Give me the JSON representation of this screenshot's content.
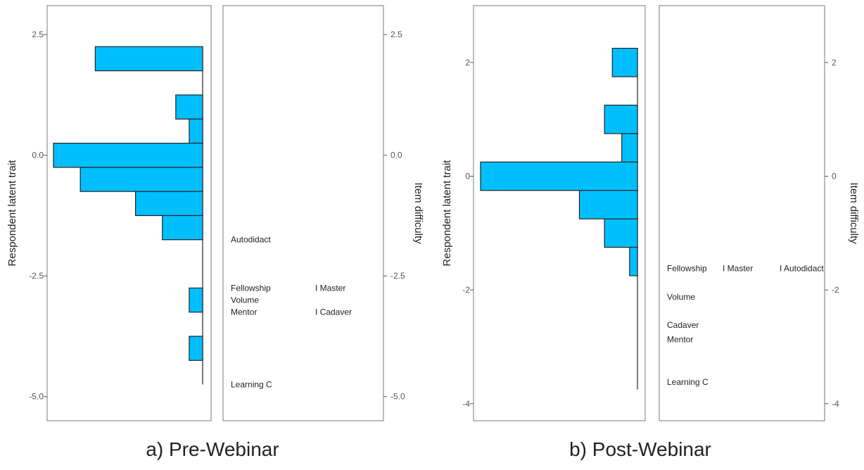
{
  "chart_data": [
    {
      "type": "wright-map",
      "caption": "a) Pre-Webinar",
      "ylabel_left": "Respondent latent trait",
      "ylabel_right": "Item difficulty",
      "ylim": [
        -5.5,
        3.1
      ],
      "yticks": [
        2.5,
        0.0,
        -2.5,
        -5.0
      ],
      "ytick_labels": [
        "2.5",
        "0.0",
        "-2.5",
        "-5.0"
      ],
      "histogram_max": 1.0,
      "histogram": [
        {
          "lo": 1.75,
          "hi": 2.25,
          "value": 0.72
        },
        {
          "lo": 0.75,
          "hi": 1.25,
          "value": 0.18
        },
        {
          "lo": 0.25,
          "hi": 0.75,
          "value": 0.09
        },
        {
          "lo": -0.25,
          "hi": 0.25,
          "value": 1.0
        },
        {
          "lo": -0.75,
          "hi": -0.25,
          "value": 0.82
        },
        {
          "lo": -1.25,
          "hi": -0.75,
          "value": 0.45
        },
        {
          "lo": -1.75,
          "hi": -1.25,
          "value": 0.27
        },
        {
          "lo": -3.25,
          "hi": -2.75,
          "value": 0.09
        },
        {
          "lo": -4.25,
          "hi": -3.75,
          "value": 0.09
        }
      ],
      "spine_range": [
        2.25,
        -4.75
      ],
      "items": [
        {
          "label": "Autodidact",
          "y": -1.75,
          "col": 0
        },
        {
          "label": "Fellowship",
          "y": -2.75,
          "col": 0
        },
        {
          "label": "I Master",
          "y": -2.75,
          "col": 1
        },
        {
          "label": "Volume",
          "y": -3.0,
          "col": 0
        },
        {
          "label": "Mentor",
          "y": -3.25,
          "col": 0
        },
        {
          "label": "I Cadaver",
          "y": -3.25,
          "col": 1
        },
        {
          "label": "Learning C",
          "y": -4.75,
          "col": 0
        }
      ]
    },
    {
      "type": "wright-map",
      "caption": "b) Post-Webinar",
      "ylabel_left": "Respondent latent trait",
      "ylabel_right": "Item difficulty",
      "ylim": [
        -4.3,
        3.0
      ],
      "yticks": [
        2,
        0,
        -2,
        -4
      ],
      "ytick_labels": [
        "2",
        "0",
        "-2",
        "-4"
      ],
      "histogram_max": 1.0,
      "histogram": [
        {
          "lo": 1.75,
          "hi": 2.25,
          "value": 0.16
        },
        {
          "lo": 0.75,
          "hi": 1.25,
          "value": 0.21
        },
        {
          "lo": 0.25,
          "hi": 0.75,
          "value": 0.1
        },
        {
          "lo": -0.25,
          "hi": 0.25,
          "value": 1.0
        },
        {
          "lo": -0.75,
          "hi": -0.25,
          "value": 0.37
        },
        {
          "lo": -1.25,
          "hi": -0.75,
          "value": 0.21
        },
        {
          "lo": -1.75,
          "hi": -1.25,
          "value": 0.05
        }
      ],
      "spine_range": [
        2.25,
        -3.75
      ],
      "items": [
        {
          "label": "Fellowship",
          "y": -1.62,
          "col": 0
        },
        {
          "label": "I Master",
          "y": -1.62,
          "col": 1
        },
        {
          "label": "I Autodidact",
          "y": -1.62,
          "col": 2
        },
        {
          "label": "Volume",
          "y": -2.12,
          "col": 0
        },
        {
          "label": "Cadaver",
          "y": -2.62,
          "col": 0
        },
        {
          "label": "Mentor",
          "y": -2.87,
          "col": 0
        },
        {
          "label": "Learning C",
          "y": -3.62,
          "col": 0
        }
      ]
    }
  ],
  "colors": {
    "bar_fill": "#00bfff",
    "bar_stroke": "#222222",
    "frame": "#7a7a7a"
  }
}
